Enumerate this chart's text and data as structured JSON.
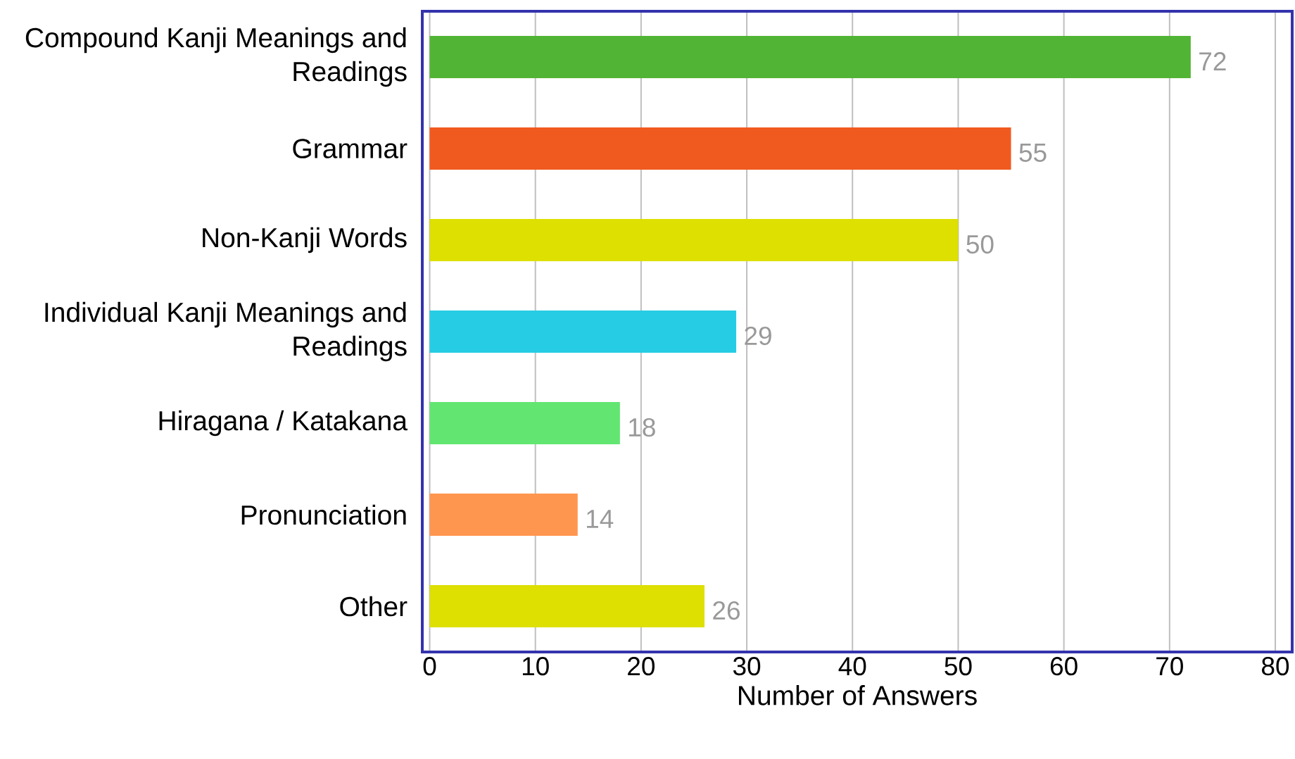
{
  "chart_data": {
    "type": "bar",
    "orientation": "horizontal",
    "categories": [
      "Compound Kanji Meanings and Readings",
      "Grammar",
      "Non-Kanji Words",
      "Individual Kanji Meanings and Readings",
      "Hiragana / Katakana",
      "Pronunciation",
      "Other"
    ],
    "values": [
      72,
      55,
      50,
      29,
      18,
      14,
      26
    ],
    "colors": [
      "#52b434",
      "#f05a1e",
      "#dde000",
      "#26cce4",
      "#62e671",
      "#ff9650",
      "#dde000"
    ],
    "xlim": [
      -0.7,
      81.6
    ],
    "xticks": [
      0,
      10,
      20,
      30,
      40,
      50,
      60,
      70,
      80
    ],
    "xlabel": "Number of Answers",
    "grid": "x",
    "data_labels": true
  }
}
